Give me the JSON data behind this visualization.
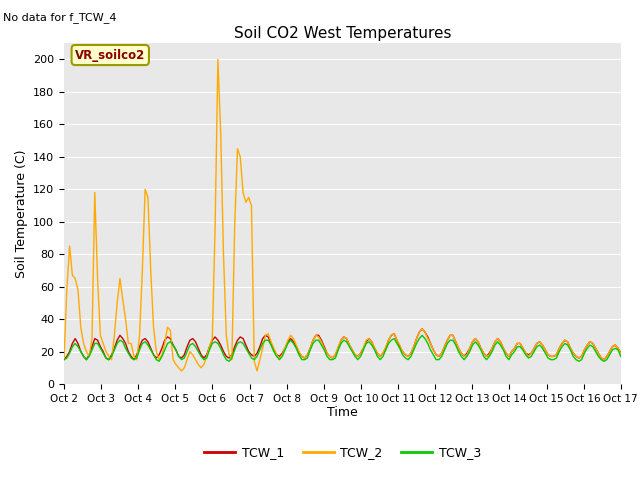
{
  "title": "Soil CO2 West Temperatures",
  "subtitle": "No data for f_TCW_4",
  "xlabel": "Time",
  "ylabel": "Soil Temperature (C)",
  "annotation": "VR_soilco2",
  "ylim": [
    0,
    210
  ],
  "yticks": [
    0,
    20,
    40,
    60,
    80,
    100,
    120,
    140,
    160,
    180,
    200
  ],
  "x_labels": [
    "Oct 2",
    "Oct 3",
    "Oct 4",
    "Oct 5",
    "Oct 6",
    "Oct 7",
    "Oct 8",
    "Oct 9",
    "Oct 10",
    "Oct 11",
    "Oct 12",
    "Oct 13",
    "Oct 14",
    "Oct 15",
    "Oct 16",
    "Oct 17"
  ],
  "bg_color": "#e8e8e8",
  "line_color_1": "#cc0000",
  "line_color_2": "#ffaa00",
  "line_color_3": "#00cc00",
  "legend_labels": [
    "TCW_1",
    "TCW_2",
    "TCW_3"
  ],
  "TCW_1": [
    15,
    17,
    20,
    25,
    28,
    25,
    20,
    17,
    15,
    18,
    23,
    28,
    27,
    23,
    20,
    16,
    15,
    18,
    22,
    27,
    30,
    28,
    25,
    20,
    17,
    15,
    18,
    23,
    27,
    28,
    26,
    22,
    18,
    16,
    18,
    22,
    27,
    29,
    28,
    24,
    21,
    17,
    16,
    18,
    23,
    27,
    28,
    26,
    22,
    18,
    16,
    18,
    23,
    27,
    29,
    27,
    24,
    20,
    17,
    16,
    18,
    23,
    27,
    29,
    28,
    24,
    20,
    18,
    17,
    19,
    23,
    28,
    30,
    29,
    25,
    21,
    18,
    17,
    19,
    22,
    26,
    28,
    26,
    23,
    19,
    17,
    16,
    18,
    22,
    27,
    30,
    30,
    27,
    23,
    19,
    17,
    16,
    18,
    22,
    27,
    29,
    28,
    24,
    21,
    18,
    17,
    19,
    22,
    26,
    28,
    26,
    22,
    19,
    17,
    19,
    22,
    27,
    30,
    31,
    27,
    23,
    20,
    18,
    17,
    19,
    23,
    28,
    32,
    34,
    32,
    29,
    25,
    21,
    18,
    17,
    19,
    23,
    27,
    30,
    30,
    26,
    22,
    19,
    17,
    19,
    22,
    26,
    28,
    26,
    22,
    19,
    17,
    19,
    22,
    26,
    28,
    26,
    22,
    19,
    17,
    20,
    22,
    25,
    25,
    22,
    19,
    18,
    19,
    22,
    25,
    26,
    24,
    21,
    18,
    17,
    17,
    18,
    22,
    25,
    27,
    26,
    22,
    19,
    17,
    16,
    17,
    21,
    24,
    26,
    25,
    22,
    19,
    16,
    15,
    17,
    20,
    23,
    24,
    22,
    19
  ],
  "TCW_2": [
    15,
    58,
    85,
    67,
    65,
    58,
    35,
    25,
    20,
    17,
    28,
    118,
    65,
    30,
    25,
    20,
    17,
    15,
    30,
    50,
    65,
    52,
    40,
    25,
    25,
    17,
    15,
    30,
    70,
    120,
    115,
    70,
    35,
    20,
    15,
    18,
    25,
    35,
    33,
    15,
    12,
    10,
    8,
    10,
    15,
    20,
    18,
    15,
    12,
    10,
    12,
    17,
    23,
    28,
    96,
    200,
    155,
    80,
    30,
    18,
    15,
    97,
    145,
    140,
    118,
    112,
    115,
    110,
    14,
    8,
    15,
    22,
    30,
    31,
    26,
    22,
    18,
    16,
    18,
    22,
    27,
    30,
    28,
    24,
    20,
    17,
    16,
    18,
    22,
    27,
    30,
    29,
    26,
    22,
    19,
    17,
    16,
    18,
    23,
    27,
    29,
    28,
    24,
    21,
    18,
    17,
    19,
    22,
    27,
    28,
    26,
    22,
    19,
    17,
    19,
    23,
    27,
    30,
    31,
    27,
    24,
    20,
    18,
    17,
    19,
    23,
    28,
    32,
    34,
    32,
    28,
    25,
    21,
    18,
    17,
    19,
    23,
    27,
    30,
    30,
    26,
    22,
    19,
    17,
    18,
    22,
    26,
    28,
    26,
    22,
    19,
    17,
    18,
    22,
    26,
    28,
    26,
    22,
    19,
    17,
    20,
    22,
    25,
    25,
    22,
    19,
    17,
    19,
    22,
    25,
    26,
    24,
    21,
    18,
    17,
    17,
    18,
    22,
    25,
    27,
    26,
    22,
    19,
    17,
    16,
    17,
    21,
    24,
    26,
    25,
    22,
    19,
    16,
    15,
    17,
    20,
    23,
    24,
    22,
    19
  ],
  "TCW_3": [
    15,
    16,
    19,
    23,
    25,
    23,
    20,
    17,
    15,
    17,
    21,
    25,
    25,
    22,
    19,
    16,
    15,
    17,
    21,
    25,
    27,
    26,
    22,
    19,
    16,
    15,
    16,
    21,
    25,
    26,
    24,
    21,
    18,
    15,
    14,
    17,
    21,
    25,
    26,
    24,
    21,
    17,
    15,
    16,
    20,
    24,
    25,
    23,
    20,
    17,
    15,
    16,
    21,
    25,
    26,
    25,
    22,
    18,
    15,
    14,
    16,
    21,
    25,
    26,
    25,
    22,
    19,
    16,
    15,
    17,
    21,
    25,
    27,
    27,
    24,
    20,
    17,
    15,
    17,
    21,
    25,
    27,
    25,
    22,
    18,
    15,
    15,
    16,
    21,
    25,
    27,
    27,
    24,
    21,
    17,
    15,
    15,
    16,
    21,
    25,
    27,
    26,
    23,
    20,
    17,
    15,
    17,
    21,
    25,
    26,
    24,
    21,
    17,
    15,
    17,
    21,
    25,
    27,
    28,
    25,
    22,
    18,
    16,
    15,
    17,
    21,
    25,
    28,
    30,
    28,
    25,
    21,
    18,
    15,
    15,
    17,
    21,
    25,
    27,
    27,
    24,
    20,
    17,
    15,
    17,
    20,
    24,
    26,
    24,
    21,
    17,
    15,
    17,
    20,
    24,
    26,
    24,
    21,
    17,
    15,
    18,
    20,
    23,
    23,
    21,
    18,
    16,
    17,
    20,
    23,
    24,
    22,
    19,
    16,
    15,
    15,
    16,
    20,
    23,
    25,
    24,
    21,
    17,
    15,
    14,
    15,
    19,
    22,
    24,
    23,
    20,
    17,
    15,
    14,
    15,
    18,
    21,
    22,
    21,
    17
  ]
}
